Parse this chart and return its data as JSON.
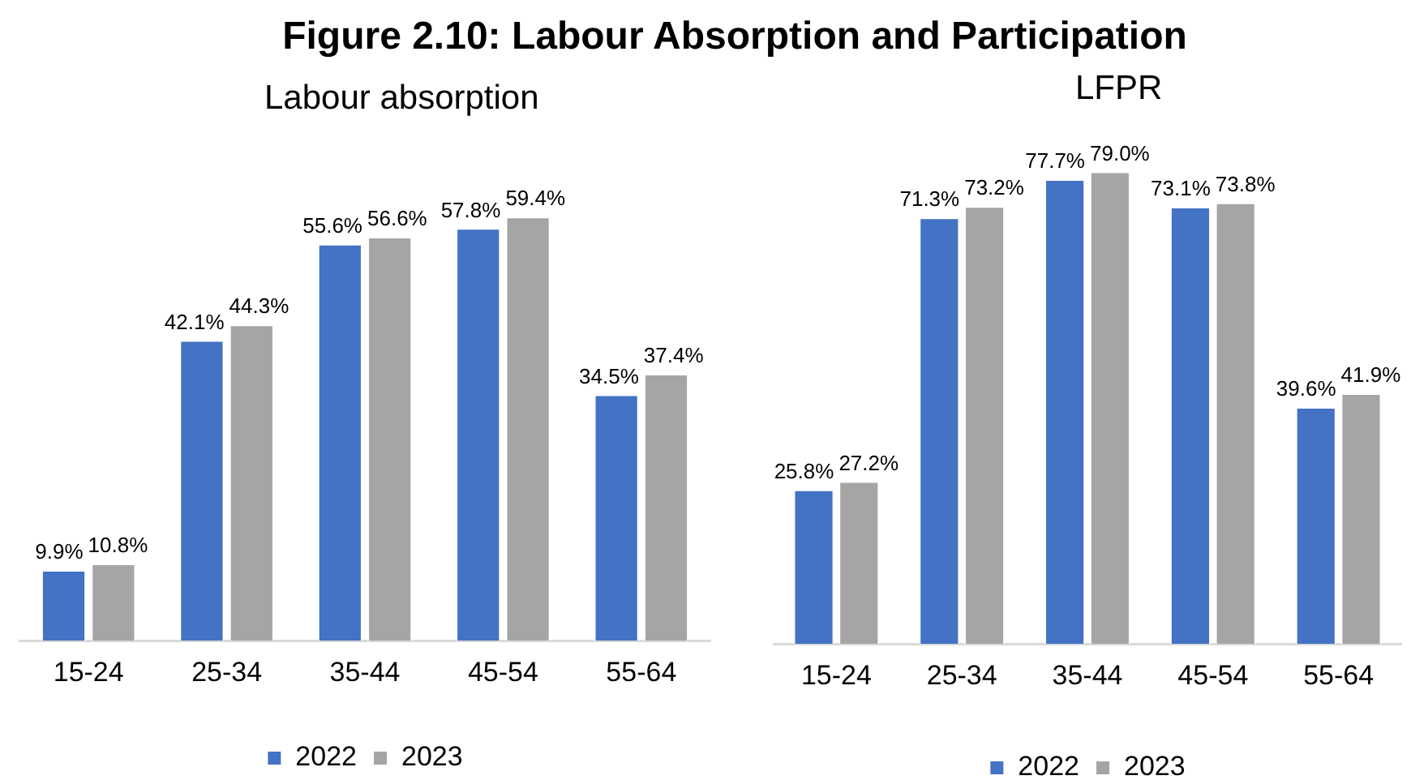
{
  "chart_data": [
    {
      "type": "bar",
      "title": "Figure 2.10: Labour Absorption and Participation",
      "subtitle": "Labour absorption",
      "categories": [
        "15-24",
        "25-34",
        "35-44",
        "45-54",
        "55-64"
      ],
      "series": [
        {
          "name": "2022",
          "color": "#4472c4",
          "values": [
            9.9,
            42.1,
            55.6,
            57.8,
            34.5
          ],
          "value_labels": [
            "9.9%",
            "42.1%",
            "55.6%",
            "57.8%",
            "34.5%"
          ]
        },
        {
          "name": "2023",
          "color": "#a5a5a5",
          "values": [
            10.8,
            44.3,
            56.6,
            59.4,
            37.4
          ],
          "value_labels": [
            "10.8%",
            "44.3%",
            "56.6%",
            "59.4%",
            "37.4%"
          ]
        }
      ],
      "legend": "bottom",
      "tick_labels": "x"
    },
    {
      "type": "bar",
      "title": "LFPR",
      "categories": [
        "15-24",
        "25-34",
        "35-44",
        "45-54",
        "55-64"
      ],
      "series": [
        {
          "name": "2022",
          "color": "#4472c4",
          "values": [
            25.8,
            71.3,
            77.7,
            73.1,
            39.6
          ],
          "value_labels": [
            "25.8%",
            "71.3%",
            "77.7%",
            "73.1%",
            "39.6%"
          ]
        },
        {
          "name": "2023",
          "color": "#a5a5a5",
          "values": [
            27.2,
            73.2,
            79.0,
            73.8,
            41.9
          ],
          "value_labels": [
            "27.2%",
            "73.2%",
            "79.0%",
            "73.8%",
            "41.9%"
          ]
        }
      ],
      "legend": "bottom",
      "tick_labels": "x"
    }
  ]
}
